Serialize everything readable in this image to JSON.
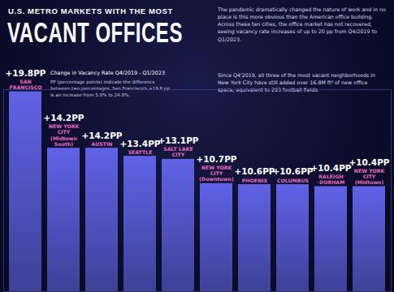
{
  "chart_data": {
    "type": "bar",
    "kicker": "U.S. METRO MARKETS WITH THE MOST",
    "title": "VACANT OFFICES",
    "subtitle": "The pandemic dramatically changed the nature of work and in no place is this more obvious than the American office building. Across these ten cities, the office market has not recovered, seeing vacancy rate increases of up to 20 pp from Q4/2019 to Q1/2023.",
    "annotations": [
      "Change in Vacancy Rate Q4/2019 - Q1/2023",
      "PP (percentage points) indicate the difference between two percentages. San Francisco's +19.8 pp is an increase from 5.0% to 24.8%.",
      "Since Q4'2019, all three of the most vacant neighborhoods in New York City have still added over 16.8M ft² of new office space, equivalent to 293 football fields."
    ],
    "categories": [
      "SAN FRANCISCO",
      "NEW YORK CITY (Midtown South)",
      "AUSTIN",
      "SEATTLE",
      "SALT LAKE CITY",
      "NEW YORK CITY (Downtown)",
      "PHOENIX",
      "COLUMBUS",
      "RALEIGH -DURHAM",
      "NEW YORK CITY (Midtown)"
    ],
    "values": [
      19.8,
      14.2,
      14.2,
      13.4,
      13.1,
      10.7,
      10.6,
      10.6,
      10.4,
      10.4
    ],
    "value_labels": [
      "+19.8PP",
      "+14.2PP",
      "+14.2PP",
      "+13.4PP",
      "+13.1PP",
      "+10.7PP",
      "+10.6PP",
      "+10.6PP",
      "+10.4PP",
      "+10.4PP"
    ],
    "color": "#5f63e6",
    "ylim": [
      0,
      20
    ],
    "yticks": [],
    "grid": false,
    "data_labels": true,
    "tick_labels": false
  }
}
